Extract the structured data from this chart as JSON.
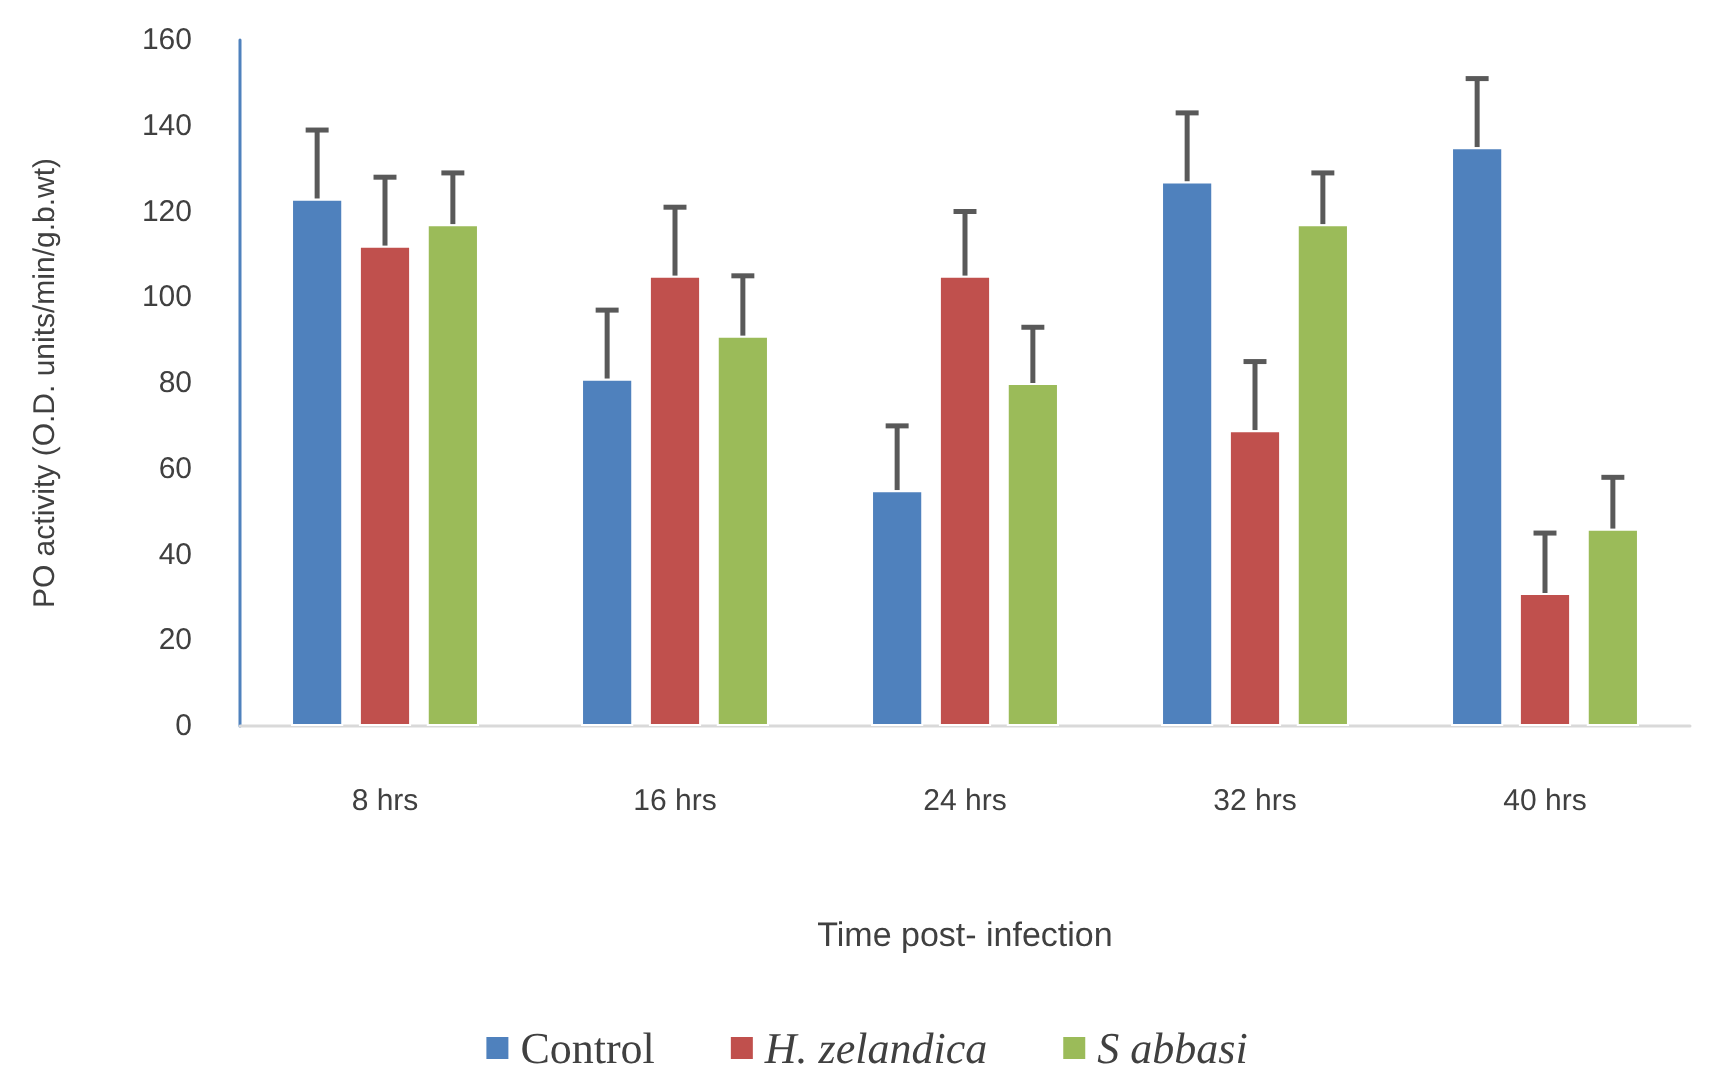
{
  "chart_data": {
    "type": "bar",
    "xlabel": "Time post- infection",
    "ylabel": "PO activity (O.D. units/min/g.b.wt)",
    "categories": [
      "8 hrs",
      "16 hrs",
      "24 hrs",
      "32 hrs",
      "40 hrs"
    ],
    "series": [
      {
        "name": "Control",
        "color": "#4f81bd",
        "values": [
          123,
          81,
          55,
          127,
          135
        ],
        "errors": [
          [
            123,
            139
          ],
          [
            81,
            97
          ],
          [
            55,
            70
          ],
          [
            127,
            143
          ],
          [
            135,
            151
          ]
        ]
      },
      {
        "name": "H. zelandica",
        "color": "#c0504d",
        "values": [
          112,
          105,
          105,
          69,
          31
        ],
        "errors": [
          [
            112,
            128
          ],
          [
            105,
            121
          ],
          [
            105,
            120
          ],
          [
            69,
            85
          ],
          [
            31,
            45
          ]
        ]
      },
      {
        "name": "S abbasi",
        "color": "#9bbb59",
        "values": [
          117,
          91,
          80,
          117,
          46
        ],
        "errors": [
          [
            117,
            129
          ],
          [
            91,
            105
          ],
          [
            80,
            93
          ],
          [
            117,
            129
          ],
          [
            46,
            58
          ]
        ]
      }
    ],
    "ylim": [
      0,
      160
    ],
    "yticks": [
      0,
      20,
      40,
      60,
      80,
      100,
      120,
      140,
      160
    ],
    "grid": false,
    "legend": "bottom"
  }
}
